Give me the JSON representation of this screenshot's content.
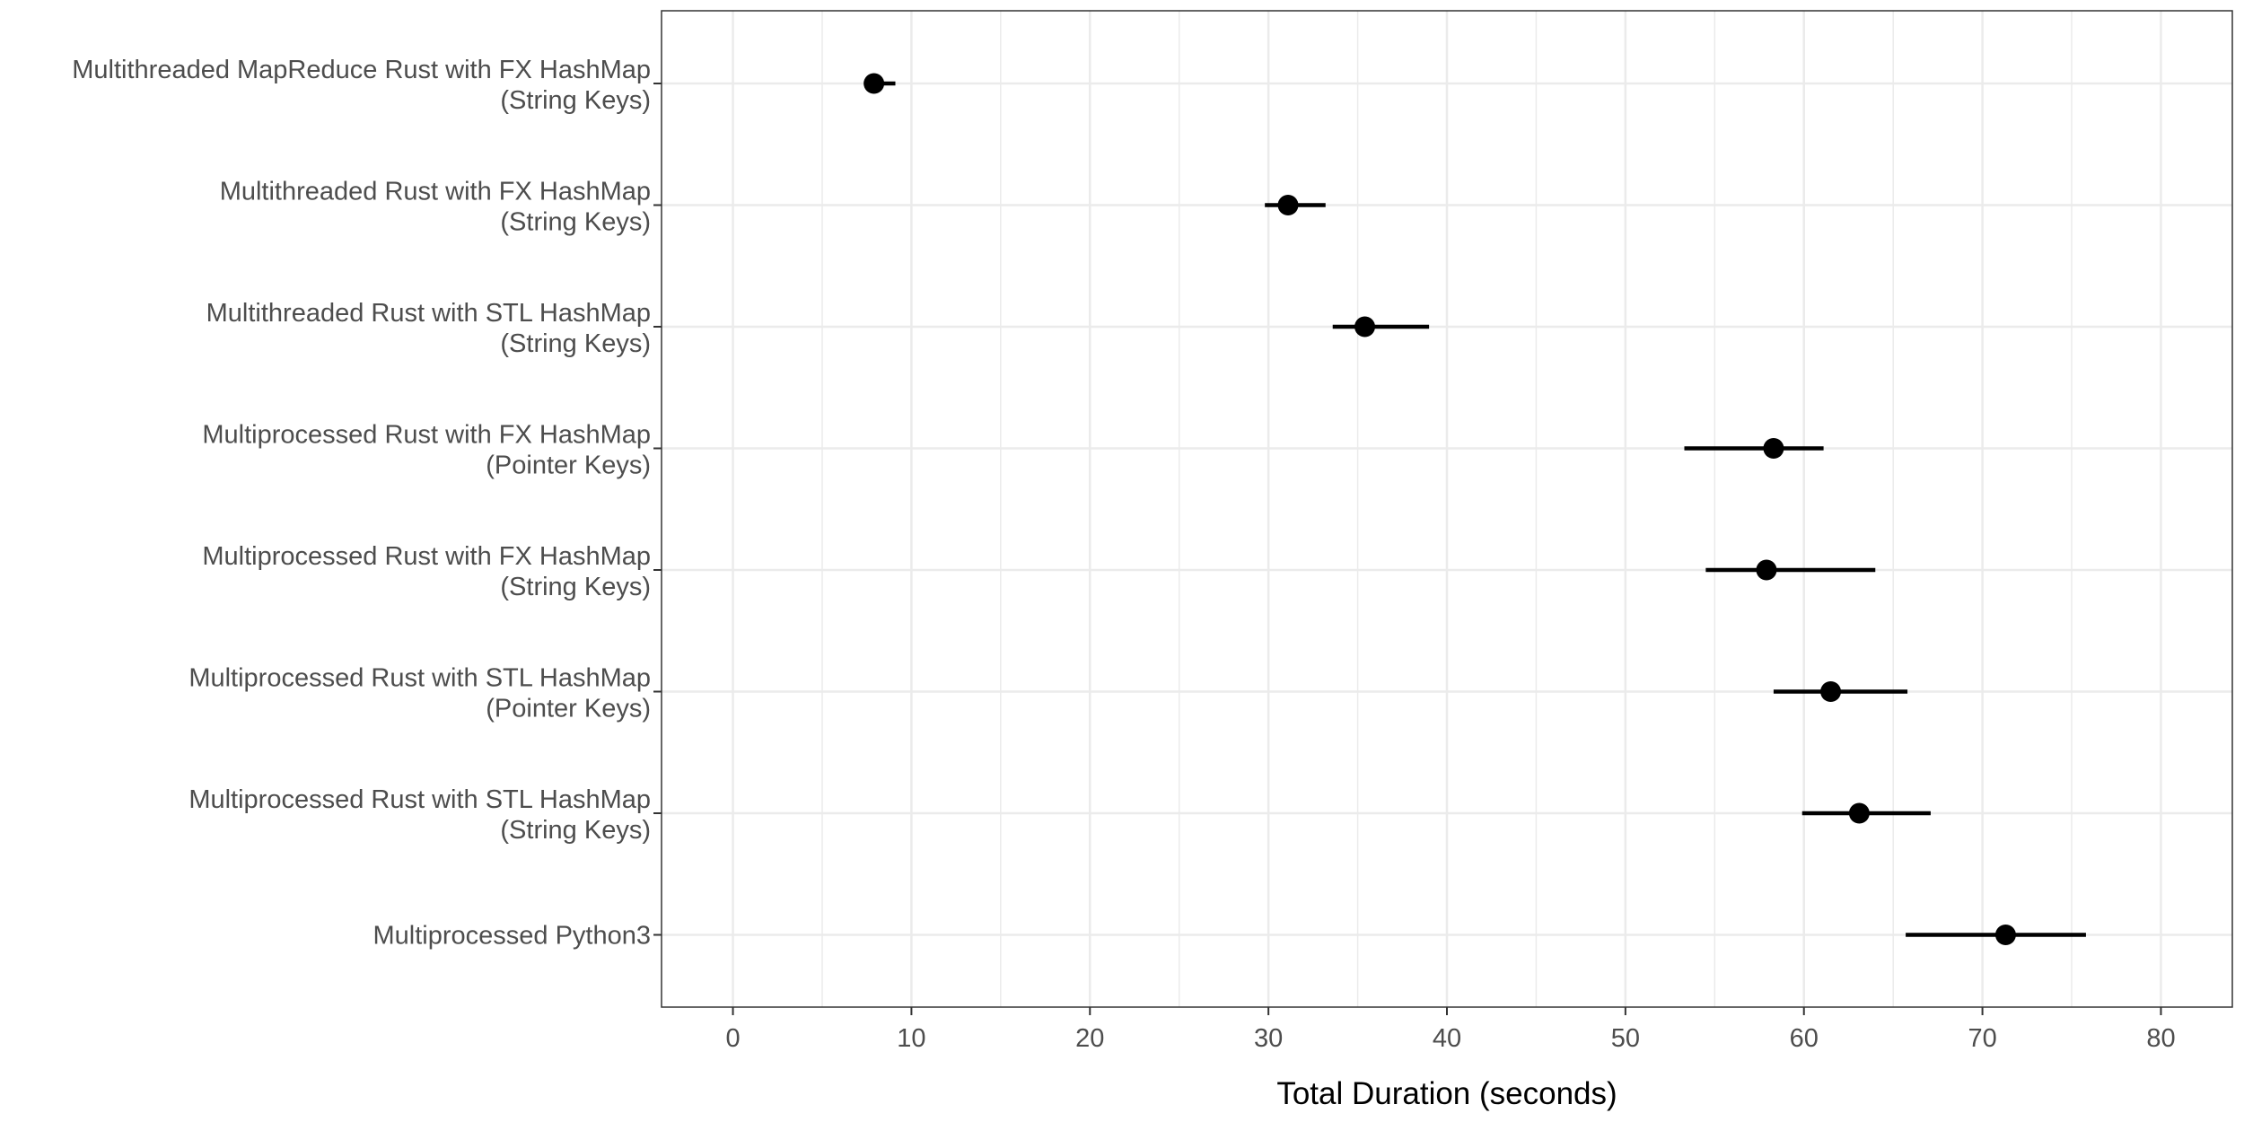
{
  "chart_data": {
    "type": "scatter",
    "subtype": "point-range",
    "orientation": "horizontal",
    "title": "",
    "xlabel": "Total Duration (seconds)",
    "ylabel": "",
    "xlim": [
      -4,
      84
    ],
    "xticks": [
      0,
      10,
      20,
      30,
      40,
      50,
      60,
      70,
      80
    ],
    "grid": true,
    "legend": "none",
    "categories": [
      {
        "line1": "Multithreaded MapReduce Rust with FX HashMap",
        "line2": "(String Keys)"
      },
      {
        "line1": "Multithreaded Rust with FX HashMap",
        "line2": "(String Keys)"
      },
      {
        "line1": "Multithreaded Rust with STL HashMap",
        "line2": "(String Keys)"
      },
      {
        "line1": "Multiprocessed Rust with FX HashMap",
        "line2": "(Pointer Keys)"
      },
      {
        "line1": "Multiprocessed Rust with FX HashMap",
        "line2": "(String Keys)"
      },
      {
        "line1": "Multiprocessed Rust with STL HashMap",
        "line2": "(Pointer Keys)"
      },
      {
        "line1": "Multiprocessed Rust with STL HashMap",
        "line2": "(String Keys)"
      },
      {
        "line1": "Multiprocessed Python3",
        "line2": ""
      }
    ],
    "series": [
      {
        "values": [
          7.9,
          31.1,
          35.4,
          58.3,
          57.9,
          61.5,
          63.1,
          71.3
        ],
        "low": [
          7.6,
          29.8,
          33.6,
          53.3,
          54.5,
          58.3,
          59.9,
          65.7
        ],
        "high": [
          9.1,
          33.2,
          39.0,
          61.1,
          64.0,
          65.8,
          67.1,
          75.8
        ]
      }
    ],
    "colors": {
      "point": "#000000",
      "range": "#000000",
      "grid": "#ebebeb",
      "panel_border": "#333333",
      "tick_text": "#4d4d4d"
    }
  }
}
